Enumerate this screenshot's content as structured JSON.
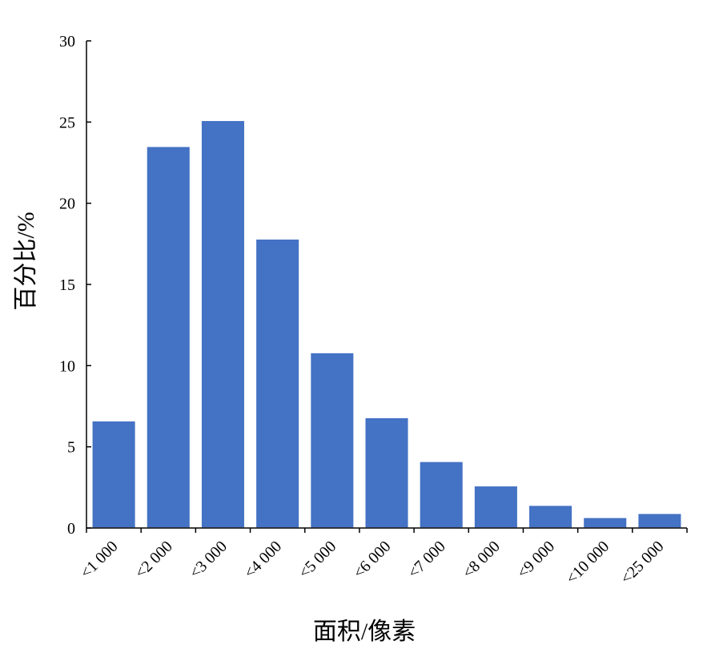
{
  "chart_data": {
    "type": "bar",
    "categories": [
      "<1 000",
      "<2 000",
      "<3 000",
      "<4 000",
      "<5 000",
      "<6 000",
      "<7 000",
      "<8 000",
      "<9 000",
      "<10 000",
      "<25 000"
    ],
    "values": [
      6.6,
      23.5,
      25.1,
      17.8,
      10.8,
      6.8,
      4.1,
      2.6,
      1.4,
      0.65,
      0.9
    ],
    "xlabel": "面积/像素",
    "ylabel": "百分比/%",
    "ylim": [
      0,
      30
    ],
    "yticks": [
      0,
      5,
      10,
      15,
      20,
      25,
      30
    ],
    "grid": false,
    "legend": "none",
    "bar_color": "#4472C4"
  }
}
